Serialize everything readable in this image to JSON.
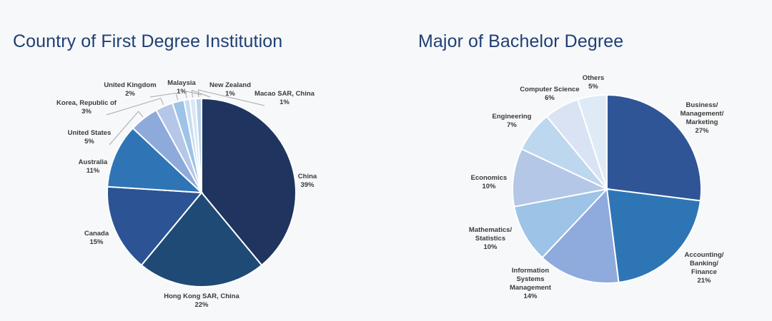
{
  "chart_data": [
    {
      "type": "pie",
      "title": "Country of First Degree Institution",
      "slices": [
        {
          "label": "China",
          "value": 39,
          "display": "39%",
          "color": "#1f3560"
        },
        {
          "label": "Hong Kong SAR, China",
          "value": 22,
          "display": "22%",
          "color": "#1e4a75"
        },
        {
          "label": "Canada",
          "value": 15,
          "display": "15%",
          "color": "#2c5494"
        },
        {
          "label": "Australia",
          "value": 11,
          "display": "11%",
          "color": "#2f75b6"
        },
        {
          "label": "United States",
          "value": 5,
          "display": "5%",
          "color": "#8eaadb"
        },
        {
          "label": "Korea, Republic of",
          "value": 3,
          "display": "3%",
          "color": "#b4c7e7"
        },
        {
          "label": "United Kingdom",
          "value": 2,
          "display": "2%",
          "color": "#9dc3e6"
        },
        {
          "label": "Malaysia",
          "value": 1,
          "display": "1%",
          "color": "#c5dcf0"
        },
        {
          "label": "New Zealand",
          "value": 1,
          "display": "1%",
          "color": "#dae7f5"
        },
        {
          "label": "Macao SAR, China",
          "value": 1,
          "display": "1%",
          "color": "#b9d3ec"
        }
      ]
    },
    {
      "type": "pie",
      "title": "Major of Bachelor Degree",
      "slices": [
        {
          "label": "Business/ Management/ Marketing",
          "value": 27,
          "display": "27%",
          "color": "#2f5597"
        },
        {
          "label": "Accounting/ Banking/ Finance",
          "value": 21,
          "display": "21%",
          "color": "#2e75b6"
        },
        {
          "label": "Information Systems Management",
          "value": 14,
          "display": "14%",
          "color": "#8faadc"
        },
        {
          "label": "Mathematics/ Statistics",
          "value": 10,
          "display": "10%",
          "color": "#9dc3e6"
        },
        {
          "label": "Economics",
          "value": 10,
          "display": "10%",
          "color": "#b4c7e7"
        },
        {
          "label": "Engineering",
          "value": 7,
          "display": "7%",
          "color": "#bdd7ee"
        },
        {
          "label": "Computer Science",
          "value": 6,
          "display": "6%",
          "color": "#dae3f3"
        },
        {
          "label": "Others",
          "value": 5,
          "display": "5%",
          "color": "#deebf7"
        }
      ]
    }
  ]
}
